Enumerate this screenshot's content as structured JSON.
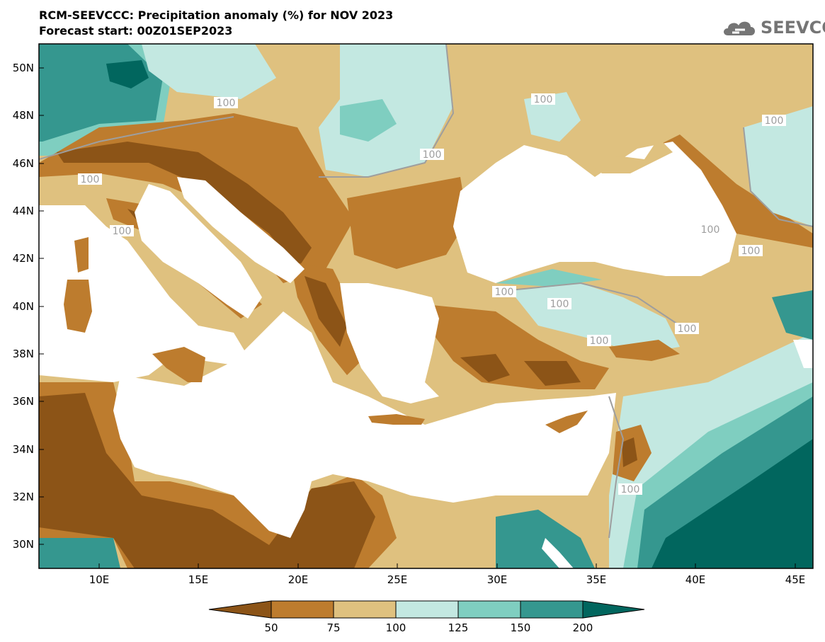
{
  "header": {
    "title": "RCM-SEEVCCC: Precipitation anomaly (%) for NOV 2023",
    "subtitle": "Forecast start: 00Z01SEP2023"
  },
  "logo": {
    "text": "SEEVCCC",
    "icon": "cloud-icon"
  },
  "axes": {
    "lat_labels": [
      "50N",
      "48N",
      "46N",
      "44N",
      "42N",
      "40N",
      "38N",
      "36N",
      "34N",
      "32N",
      "30N"
    ],
    "lon_labels": [
      "10E",
      "15E",
      "20E",
      "25E",
      "30E",
      "35E",
      "40E",
      "45E"
    ]
  },
  "contour_labels": [
    "100",
    "100",
    "100",
    "100",
    "100",
    "100",
    "100",
    "100",
    "100",
    "100",
    "100",
    "100",
    "100"
  ],
  "colorbar": {
    "ticks": [
      "50",
      "75",
      "100",
      "125",
      "150",
      "200"
    ],
    "colors": [
      "#8c5417",
      "#bd7c2e",
      "#dfc17f",
      "#c3e8e1",
      "#7fcec0",
      "#35978f",
      "#01665e"
    ]
  },
  "colors": {
    "sea": "#ffffff",
    "very_dry": "#8c5417",
    "dry": "#bd7c2e",
    "slightly_dry": "#dfc17f",
    "slightly_wet": "#c3e8e1",
    "wet": "#7fcec0",
    "very_wet": "#35978f",
    "extreme_wet": "#01665e",
    "contour": "#9e9e9e"
  }
}
